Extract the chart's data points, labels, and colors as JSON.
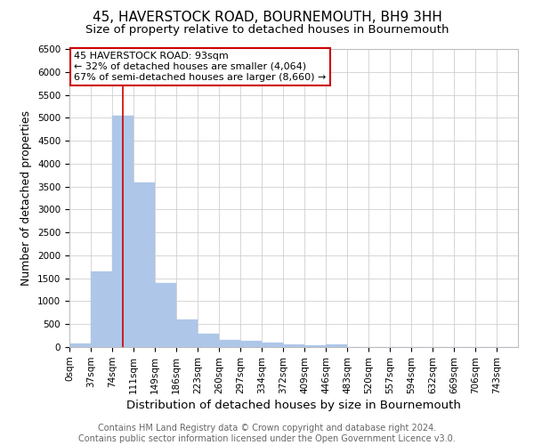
{
  "title": "45, HAVERSTOCK ROAD, BOURNEMOUTH, BH9 3HH",
  "subtitle": "Size of property relative to detached houses in Bournemouth",
  "xlabel": "Distribution of detached houses by size in Bournemouth",
  "ylabel": "Number of detached properties",
  "footer_line1": "Contains HM Land Registry data © Crown copyright and database right 2024.",
  "footer_line2": "Contains public sector information licensed under the Open Government Licence v3.0.",
  "bin_edges": [
    0,
    37,
    74,
    111,
    148,
    185,
    222,
    259,
    296,
    333,
    370,
    407,
    444,
    481,
    518,
    555,
    592,
    629,
    666,
    703,
    740,
    777
  ],
  "bin_labels": [
    "0sqm",
    "37sqm",
    "74sqm",
    "111sqm",
    "149sqm",
    "186sqm",
    "223sqm",
    "260sqm",
    "297sqm",
    "334sqm",
    "372sqm",
    "409sqm",
    "446sqm",
    "483sqm",
    "520sqm",
    "557sqm",
    "594sqm",
    "632sqm",
    "669sqm",
    "706sqm",
    "743sqm"
  ],
  "bar_heights": [
    75,
    1650,
    5050,
    3580,
    1400,
    610,
    300,
    155,
    130,
    95,
    65,
    35,
    65,
    0,
    0,
    0,
    0,
    0,
    0,
    0,
    0
  ],
  "bar_color": "#aec6e8",
  "bar_edge_color": "#aec6e8",
  "property_size": 93,
  "red_line_color": "#cc0000",
  "annotation_text_line1": "45 HAVERSTOCK ROAD: 93sqm",
  "annotation_text_line2": "← 32% of detached houses are smaller (4,064)",
  "annotation_text_line3": "67% of semi-detached houses are larger (8,660) →",
  "annotation_box_color": "#cc0000",
  "annotation_bg": "#ffffff",
  "grid_color": "#d0d0d0",
  "ylim": [
    0,
    6500
  ],
  "yticks": [
    0,
    500,
    1000,
    1500,
    2000,
    2500,
    3000,
    3500,
    4000,
    4500,
    5000,
    5500,
    6000,
    6500
  ],
  "bg_color": "#ffffff",
  "title_fontsize": 11,
  "subtitle_fontsize": 9.5,
  "axis_label_fontsize": 9,
  "tick_fontsize": 7.5,
  "footer_fontsize": 7,
  "annotation_fontsize": 8
}
